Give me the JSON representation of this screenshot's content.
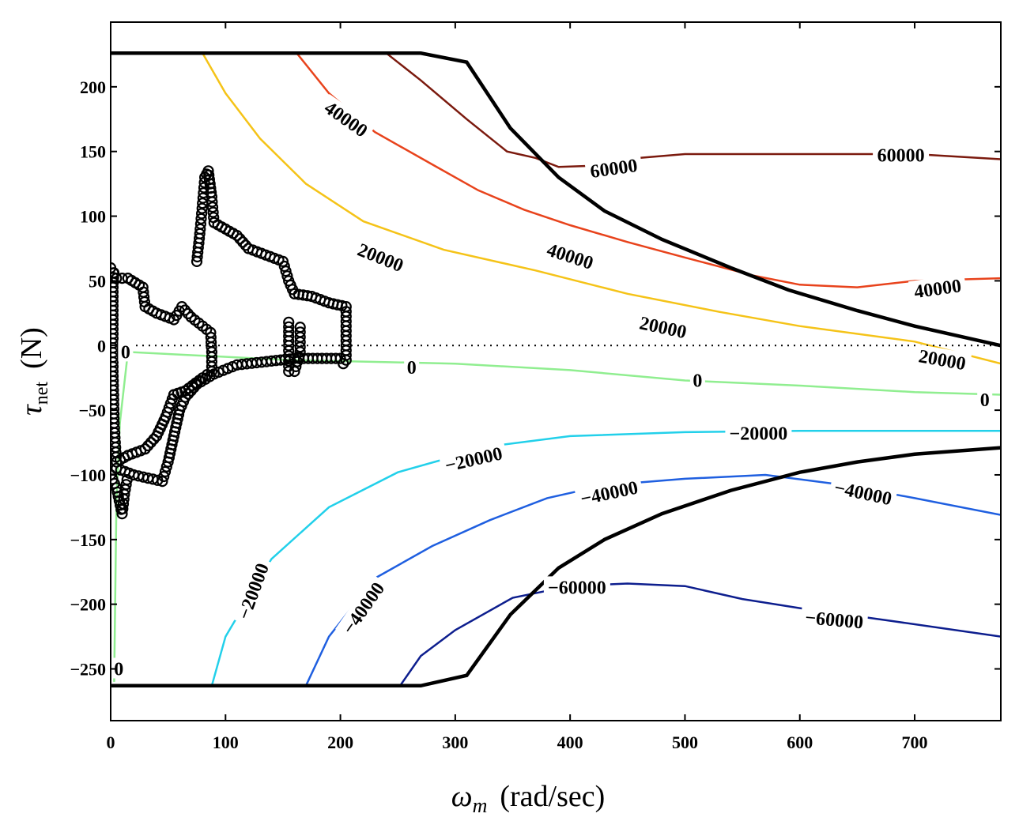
{
  "chart_data": {
    "type": "contour",
    "xlabel": "ω_m (rad/sec)",
    "ylabel": "τ_net (N)",
    "xlabel_parts": {
      "symbol": "ω",
      "subscript": "m",
      "rest": "(rad/sec)"
    },
    "ylabel_parts": {
      "symbol": "τ",
      "subscript": "net",
      "rest": "(N)"
    },
    "xlim": [
      0,
      775
    ],
    "ylim": [
      -290,
      250
    ],
    "xticks": [
      0,
      100,
      200,
      300,
      400,
      500,
      600,
      700
    ],
    "yticks": [
      -250,
      -200,
      -150,
      -100,
      -50,
      0,
      50,
      100,
      150,
      200
    ],
    "xtick_labels": [
      "0",
      "100",
      "200",
      "300",
      "400",
      "500",
      "600",
      "700"
    ],
    "ytick_labels": [
      "−250",
      "−200",
      "−150",
      "−100",
      "−50",
      "0",
      "50",
      "100",
      "150",
      "200"
    ],
    "zero_line": {
      "y": 0,
      "style": "dotted"
    },
    "boundary": [
      {
        "name": "upper-limit",
        "color": "#000000",
        "points": [
          [
            0,
            226
          ],
          [
            270,
            226
          ],
          [
            310,
            219
          ],
          [
            348,
            168
          ],
          [
            390,
            130
          ],
          [
            430,
            104
          ],
          [
            480,
            82
          ],
          [
            540,
            60
          ],
          [
            590,
            43
          ],
          [
            650,
            27
          ],
          [
            700,
            15
          ],
          [
            775,
            0
          ]
        ]
      },
      {
        "name": "lower-limit",
        "color": "#000000",
        "points": [
          [
            0,
            -263
          ],
          [
            270,
            -263
          ],
          [
            310,
            -255
          ],
          [
            348,
            -208
          ],
          [
            390,
            -172
          ],
          [
            430,
            -150
          ],
          [
            480,
            -130
          ],
          [
            540,
            -112
          ],
          [
            600,
            -98
          ],
          [
            650,
            -90
          ],
          [
            700,
            -84
          ],
          [
            775,
            -79
          ]
        ]
      }
    ],
    "contours": [
      {
        "level": 60000,
        "color": "#7b1a0e",
        "points": [
          [
            240,
            226
          ],
          [
            270,
            205
          ],
          [
            310,
            175
          ],
          [
            345,
            150
          ],
          [
            370,
            145
          ],
          [
            390,
            138
          ],
          [
            420,
            139
          ],
          [
            460,
            145
          ],
          [
            500,
            148
          ],
          [
            600,
            148
          ],
          [
            700,
            148
          ],
          [
            775,
            144
          ]
        ]
      },
      {
        "level": 40000,
        "color": "#e8431c",
        "points": [
          [
            162,
            226
          ],
          [
            190,
            195
          ],
          [
            230,
            165
          ],
          [
            280,
            140
          ],
          [
            320,
            120
          ],
          [
            360,
            105
          ],
          [
            400,
            93
          ],
          [
            450,
            80
          ],
          [
            500,
            68
          ],
          [
            560,
            54
          ],
          [
            600,
            47
          ],
          [
            650,
            45
          ],
          [
            700,
            50
          ],
          [
            775,
            52
          ]
        ]
      },
      {
        "level": 20000,
        "color": "#f5c318",
        "points": [
          [
            80,
            226
          ],
          [
            100,
            195
          ],
          [
            130,
            160
          ],
          [
            170,
            125
          ],
          [
            220,
            96
          ],
          [
            290,
            74
          ],
          [
            370,
            58
          ],
          [
            450,
            40
          ],
          [
            530,
            26
          ],
          [
            600,
            15
          ],
          [
            700,
            3
          ],
          [
            775,
            -14
          ]
        ]
      },
      {
        "level": 0,
        "color": "#90ee90",
        "points": [
          [
            3,
            -260
          ],
          [
            5,
            -120
          ],
          [
            8,
            -60
          ],
          [
            15,
            -5
          ],
          [
            60,
            -7
          ],
          [
            150,
            -11
          ],
          [
            300,
            -14
          ],
          [
            400,
            -19
          ],
          [
            500,
            -27
          ],
          [
            600,
            -31
          ],
          [
            700,
            -36
          ],
          [
            775,
            -38
          ]
        ]
      },
      {
        "level": -20000,
        "color": "#22d0ea",
        "points": [
          [
            88,
            -263
          ],
          [
            100,
            -225
          ],
          [
            140,
            -165
          ],
          [
            190,
            -125
          ],
          [
            250,
            -98
          ],
          [
            330,
            -78
          ],
          [
            400,
            -70
          ],
          [
            500,
            -67
          ],
          [
            600,
            -66
          ],
          [
            700,
            -66
          ],
          [
            775,
            -66
          ]
        ]
      },
      {
        "level": -40000,
        "color": "#1f5fe0",
        "points": [
          [
            170,
            -263
          ],
          [
            190,
            -225
          ],
          [
            230,
            -180
          ],
          [
            280,
            -155
          ],
          [
            330,
            -135
          ],
          [
            380,
            -118
          ],
          [
            430,
            -108
          ],
          [
            500,
            -103
          ],
          [
            570,
            -100
          ],
          [
            640,
            -108
          ],
          [
            700,
            -118
          ],
          [
            775,
            -131
          ]
        ]
      },
      {
        "level": -60000,
        "color": "#0d1e8e",
        "points": [
          [
            252,
            -263
          ],
          [
            270,
            -240
          ],
          [
            300,
            -220
          ],
          [
            350,
            -195
          ],
          [
            400,
            -186
          ],
          [
            450,
            -184
          ],
          [
            500,
            -186
          ],
          [
            550,
            -196
          ],
          [
            600,
            -203
          ],
          [
            680,
            -213
          ],
          [
            775,
            -225
          ]
        ]
      }
    ],
    "contour_labels": [
      {
        "text": "40000",
        "x": 205,
        "y": 175,
        "angle": 35
      },
      {
        "text": "60000",
        "x": 438,
        "y": 137,
        "angle": -8
      },
      {
        "text": "60000",
        "x": 688,
        "y": 147,
        "angle": 0
      },
      {
        "text": "20000",
        "x": 235,
        "y": 68,
        "angle": 22
      },
      {
        "text": "40000",
        "x": 400,
        "y": 69,
        "angle": 18
      },
      {
        "text": "40000",
        "x": 720,
        "y": 44,
        "angle": -8
      },
      {
        "text": "20000",
        "x": 481,
        "y": 14,
        "angle": 12
      },
      {
        "text": "20000",
        "x": 724,
        "y": -11,
        "angle": 10
      },
      {
        "text": "0",
        "x": 13,
        "y": -5,
        "angle": 0
      },
      {
        "text": "0",
        "x": 262,
        "y": -17,
        "angle": 0
      },
      {
        "text": "0",
        "x": 511,
        "y": -27,
        "angle": 0
      },
      {
        "text": "0",
        "x": 761,
        "y": -42,
        "angle": 0
      },
      {
        "text": "−20000",
        "x": 316,
        "y": -88,
        "angle": -13
      },
      {
        "text": "−20000",
        "x": 564,
        "y": -68,
        "angle": 0
      },
      {
        "text": "−20000",
        "x": 124,
        "y": -190,
        "angle": -70
      },
      {
        "text": "−40000",
        "x": 434,
        "y": -114,
        "angle": -12
      },
      {
        "text": "−40000",
        "x": 655,
        "y": -114,
        "angle": 12
      },
      {
        "text": "−40000",
        "x": 220,
        "y": -203,
        "angle": -55
      },
      {
        "text": "−60000",
        "x": 406,
        "y": -187,
        "angle": 0
      },
      {
        "text": "−60000",
        "x": 630,
        "y": -212,
        "angle": 5
      },
      {
        "text": "0",
        "x": 7,
        "y": -250,
        "angle": 0
      }
    ],
    "scatter": {
      "name": "operating-points",
      "marker": "open-circle",
      "color": "#000000",
      "path": [
        [
          0,
          60
        ],
        [
          5,
          52
        ],
        [
          15,
          52
        ],
        [
          28,
          45
        ],
        [
          30,
          30
        ],
        [
          40,
          25
        ],
        [
          55,
          20
        ],
        [
          62,
          30
        ],
        [
          70,
          22
        ],
        [
          80,
          15
        ],
        [
          87,
          10
        ],
        [
          88,
          -5
        ],
        [
          88,
          -20
        ],
        [
          80,
          -25
        ],
        [
          65,
          -35
        ],
        [
          55,
          -38
        ],
        [
          48,
          -55
        ],
        [
          40,
          -70
        ],
        [
          30,
          -80
        ],
        [
          15,
          -85
        ],
        [
          5,
          -90
        ],
        [
          3,
          -60
        ],
        [
          2,
          -20
        ],
        [
          2,
          20
        ],
        [
          2,
          45
        ],
        [
          3,
          60
        ]
      ],
      "extra_paths": [
        [
          [
            5,
            -95
          ],
          [
            20,
            -100
          ],
          [
            45,
            -105
          ],
          [
            50,
            -90
          ],
          [
            55,
            -70
          ],
          [
            60,
            -50
          ],
          [
            65,
            -40
          ],
          [
            75,
            -30
          ],
          [
            90,
            -22
          ],
          [
            110,
            -15
          ],
          [
            140,
            -12
          ],
          [
            160,
            -10
          ],
          [
            180,
            -10
          ],
          [
            200,
            -10
          ],
          [
            205,
            -18
          ]
        ],
        [
          [
            0,
            -100
          ],
          [
            5,
            -110
          ],
          [
            10,
            -130
          ],
          [
            12,
            -115
          ],
          [
            15,
            -100
          ]
        ],
        [
          [
            75,
            65
          ],
          [
            78,
            90
          ],
          [
            80,
            110
          ],
          [
            82,
            130
          ],
          [
            85,
            135
          ],
          [
            88,
            115
          ],
          [
            90,
            95
          ],
          [
            100,
            90
          ],
          [
            110,
            85
          ],
          [
            120,
            75
          ],
          [
            135,
            70
          ],
          [
            150,
            65
          ],
          [
            155,
            50
          ],
          [
            160,
            40
          ],
          [
            175,
            38
          ],
          [
            190,
            33
          ],
          [
            205,
            30
          ],
          [
            205,
            15
          ],
          [
            205,
            0
          ],
          [
            205,
            -15
          ]
        ],
        [
          [
            155,
            18
          ],
          [
            155,
            0
          ],
          [
            155,
            -20
          ],
          [
            160,
            -20
          ],
          [
            165,
            -5
          ],
          [
            165,
            18
          ]
        ]
      ]
    }
  }
}
